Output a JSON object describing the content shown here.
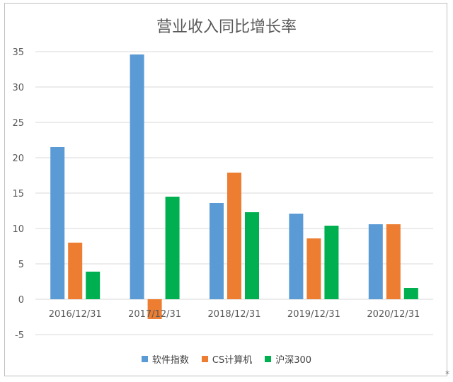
{
  "chart_data": {
    "type": "bar",
    "title": "营业收入同比增长率",
    "categories": [
      "2016/12/31",
      "2017/12/31",
      "2018/12/31",
      "2019/12/31",
      "2020/12/31"
    ],
    "series": [
      {
        "name": "软件指数",
        "color": "#5b9bd5",
        "values": [
          21.5,
          34.6,
          13.6,
          12.1,
          10.6
        ]
      },
      {
        "name": "CS计算机",
        "color": "#ed7d31",
        "values": [
          8.0,
          -2.8,
          17.9,
          8.6,
          10.6
        ]
      },
      {
        "name": "沪深300",
        "color": "#00b050",
        "values": [
          3.9,
          14.5,
          12.3,
          10.4,
          1.6
        ]
      }
    ],
    "y_ticks": [
      "-5",
      "0",
      "5",
      "10",
      "15",
      "20",
      "25",
      "30",
      "35"
    ],
    "ylim": [
      -5,
      35
    ],
    "grid": true,
    "legend_position": "bottom"
  }
}
